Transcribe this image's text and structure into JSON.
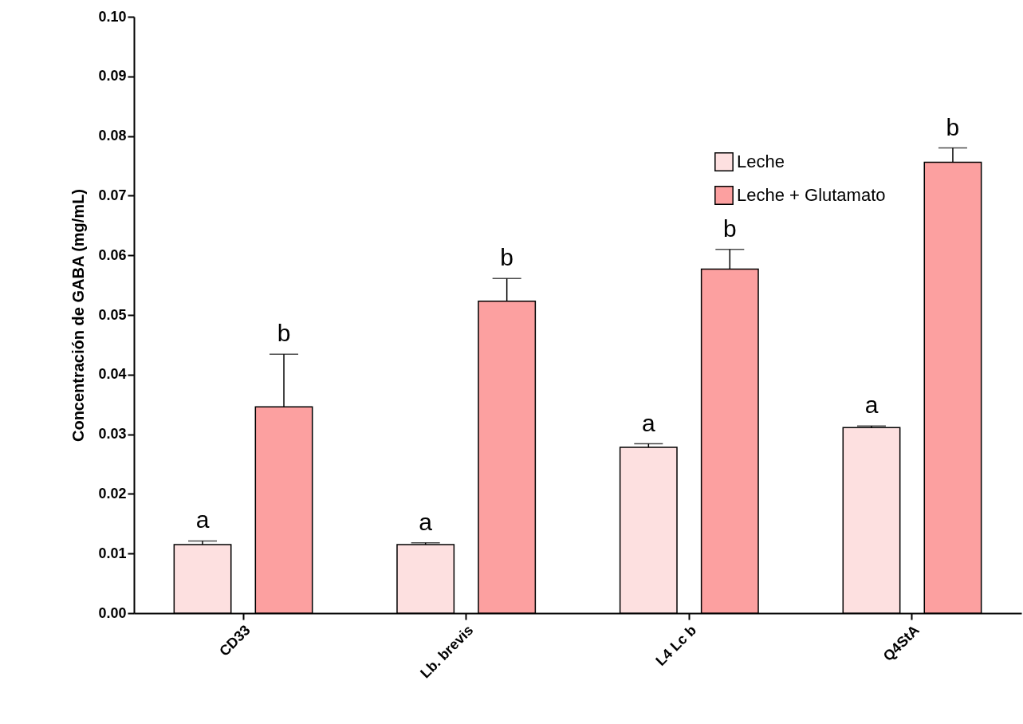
{
  "chart_data": {
    "type": "bar",
    "ylabel": "Concentración de GABA (mg/mL)",
    "categories": [
      "CD33",
      "Lb. brevis",
      "L4 Lc b",
      "Q4StA"
    ],
    "series": [
      {
        "name": "Leche",
        "color": "#fde0e0",
        "values": [
          0.0115,
          0.0115,
          0.0278,
          0.0311
        ],
        "errors": [
          [
            0.0115,
            0.0121
          ],
          [
            0.0115,
            0.0118
          ],
          [
            0.0278,
            0.0284
          ],
          [
            0.0311,
            0.0314
          ]
        ]
      },
      {
        "name": "Leche + Glutamato",
        "color": "#fca0a0",
        "values": [
          0.0346,
          0.0523,
          0.0577,
          0.0756
        ],
        "errors": [
          [
            0.0346,
            0.0434
          ],
          [
            0.0523,
            0.0561
          ],
          [
            0.0577,
            0.061
          ],
          [
            0.0756,
            0.078
          ]
        ]
      }
    ],
    "ylim": [
      0,
      0.1
    ],
    "yticks": [
      {
        "value": 0,
        "label": "0.00"
      },
      0.01,
      0.02,
      0.03,
      0.04,
      0.05,
      0.06,
      0.07,
      0.08,
      0.09,
      {
        "value": 0.1,
        "label": "0.10"
      }
    ],
    "legend": "top right",
    "annotations": [
      "a",
      "b",
      "a",
      "b",
      "a",
      "b",
      "a",
      "b"
    ]
  }
}
